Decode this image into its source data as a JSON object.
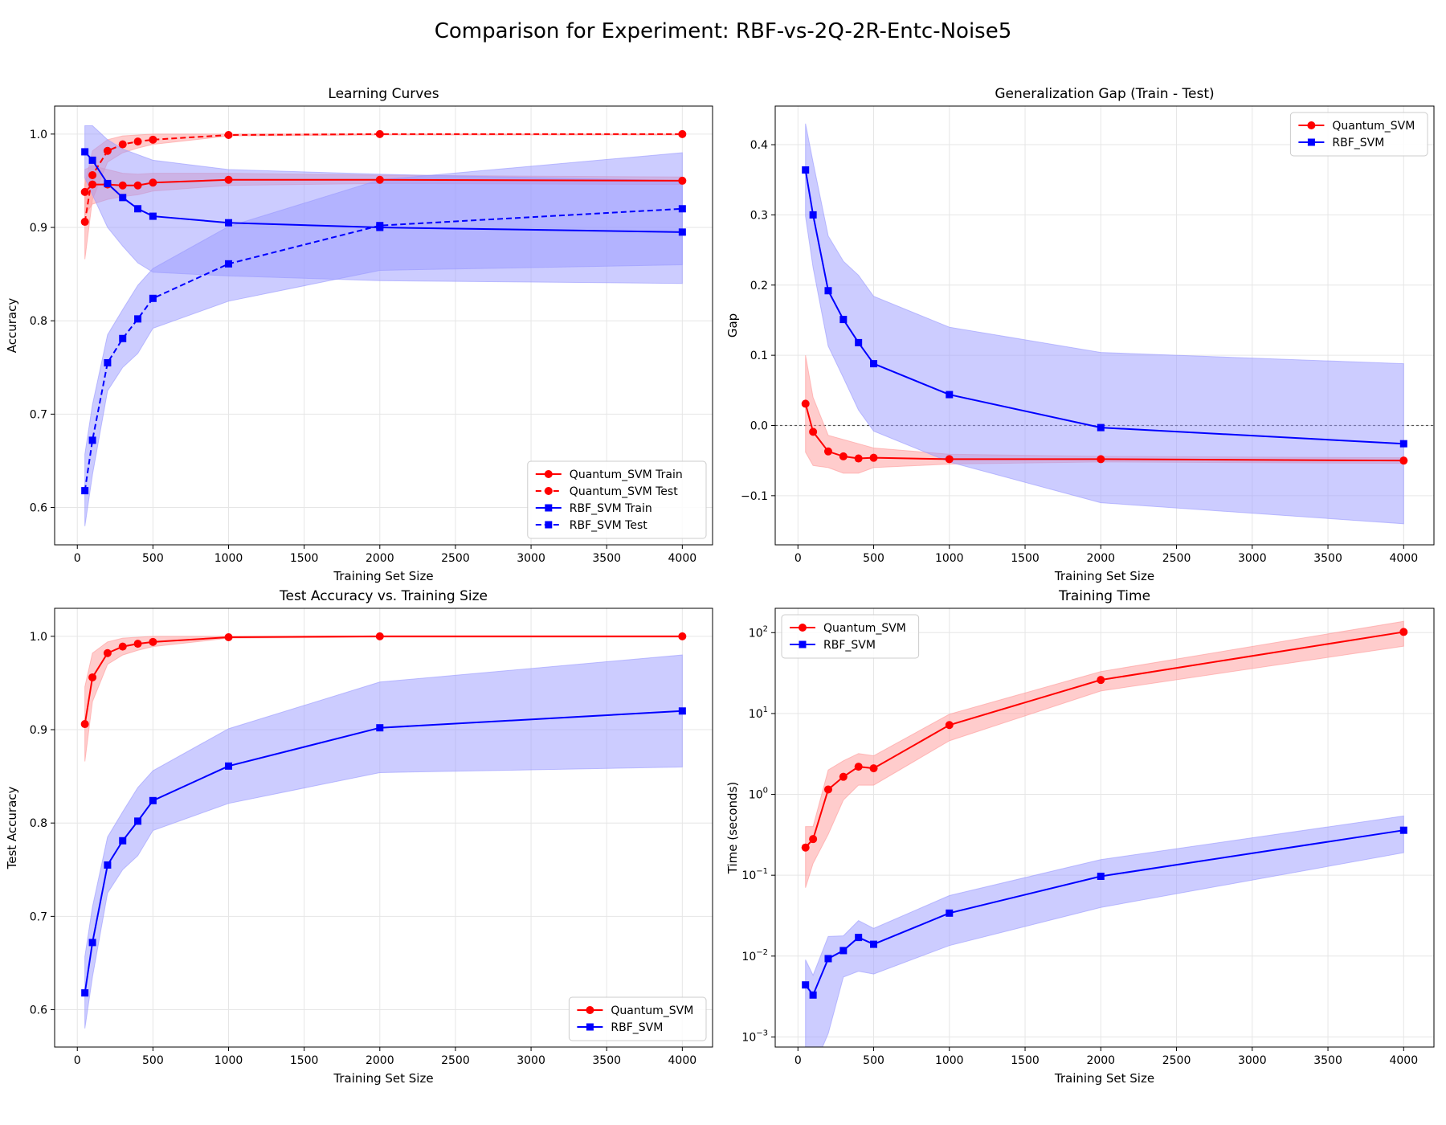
{
  "suptitle": "Comparison for Experiment: RBF-vs-2Q-2R-Entc-Noise5",
  "colors": {
    "quantum": "#ff0000",
    "rbf": "#0000ff",
    "quantum_band": "#ff9999",
    "rbf_band": "#9999ff",
    "grid": "#e6e6e6"
  },
  "chart_data": [
    {
      "id": "learning-curves",
      "type": "line",
      "title": "Learning Curves",
      "xlabel": "Training Set Size",
      "ylabel": "Accuracy",
      "xlim": [
        -150,
        4200
      ],
      "ylim": [
        0.56,
        1.03
      ],
      "xticks": [
        0,
        500,
        1000,
        1500,
        2000,
        2500,
        3000,
        3500,
        4000
      ],
      "xtick_labels": [
        "0",
        "500",
        "1000",
        "1500",
        "2000",
        "2500",
        "3000",
        "3500",
        "4000"
      ],
      "yticks": [
        0.6,
        0.7,
        0.8,
        0.9,
        1.0
      ],
      "ytick_labels": [
        "0.6",
        "0.7",
        "0.8",
        "0.9",
        "1.0"
      ],
      "grid": true,
      "legend": "lower-right",
      "x": [
        50,
        100,
        200,
        300,
        400,
        500,
        1000,
        2000,
        4000
      ],
      "series": [
        {
          "name": "Quantum_SVM Train",
          "color": "quantum",
          "marker": "circle",
          "dash": false,
          "values": [
            0.938,
            0.946,
            0.946,
            0.945,
            0.945,
            0.948,
            0.951,
            0.951,
            0.95
          ],
          "lower": [
            0.913,
            0.925,
            0.93,
            0.933,
            0.935,
            0.939,
            0.945,
            0.947,
            0.946
          ],
          "upper": [
            0.962,
            0.966,
            0.962,
            0.958,
            0.957,
            0.958,
            0.958,
            0.956,
            0.954
          ]
        },
        {
          "name": "Quantum_SVM Test",
          "color": "quantum",
          "marker": "circle",
          "dash": true,
          "values": [
            0.906,
            0.956,
            0.982,
            0.989,
            0.992,
            0.994,
            0.999,
            1.0,
            1.0
          ],
          "lower": [
            0.866,
            0.93,
            0.97,
            0.98,
            0.985,
            0.989,
            0.998,
            0.999,
            0.999
          ],
          "upper": [
            0.946,
            0.982,
            0.994,
            0.998,
            0.999,
            1.0,
            1.0,
            1.0,
            1.0
          ]
        },
        {
          "name": "RBF_SVM Train",
          "color": "rbf",
          "marker": "square",
          "dash": false,
          "values": [
            0.981,
            0.972,
            0.947,
            0.932,
            0.92,
            0.912,
            0.905,
            0.9,
            0.895
          ],
          "lower": [
            0.953,
            0.935,
            0.9,
            0.88,
            0.862,
            0.852,
            0.848,
            0.843,
            0.84
          ],
          "upper": [
            1.009,
            1.009,
            0.994,
            0.984,
            0.978,
            0.972,
            0.962,
            0.957,
            0.95
          ]
        },
        {
          "name": "RBF_SVM Test",
          "color": "rbf",
          "marker": "square",
          "dash": true,
          "values": [
            0.618,
            0.672,
            0.755,
            0.781,
            0.802,
            0.824,
            0.861,
            0.902,
            0.92
          ],
          "lower": [
            0.58,
            0.635,
            0.725,
            0.75,
            0.765,
            0.792,
            0.821,
            0.854,
            0.86
          ],
          "upper": [
            0.657,
            0.71,
            0.785,
            0.812,
            0.838,
            0.856,
            0.901,
            0.951,
            0.98
          ]
        }
      ]
    },
    {
      "id": "generalization-gap",
      "type": "line",
      "title": "Generalization Gap (Train - Test)",
      "xlabel": "Training Set Size",
      "ylabel": "Gap",
      "xlim": [
        -150,
        4200
      ],
      "ylim": [
        -0.17,
        0.455
      ],
      "xticks": [
        0,
        500,
        1000,
        1500,
        2000,
        2500,
        3000,
        3500,
        4000
      ],
      "xtick_labels": [
        "0",
        "500",
        "1000",
        "1500",
        "2000",
        "2500",
        "3000",
        "3500",
        "4000"
      ],
      "yticks": [
        -0.1,
        0.0,
        0.1,
        0.2,
        0.3,
        0.4
      ],
      "ytick_labels": [
        "−0.1",
        "0.0",
        "0.1",
        "0.2",
        "0.3",
        "0.4"
      ],
      "grid": true,
      "zero_line": true,
      "legend": "top-right",
      "x": [
        50,
        100,
        200,
        300,
        400,
        500,
        1000,
        2000,
        4000
      ],
      "series": [
        {
          "name": "Quantum_SVM",
          "color": "quantum",
          "marker": "circle",
          "dash": false,
          "values": [
            0.031,
            -0.009,
            -0.037,
            -0.044,
            -0.047,
            -0.046,
            -0.048,
            -0.048,
            -0.05
          ],
          "lower": [
            -0.038,
            -0.057,
            -0.06,
            -0.068,
            -0.068,
            -0.06,
            -0.055,
            -0.052,
            -0.054
          ],
          "upper": [
            0.1,
            0.04,
            -0.014,
            -0.02,
            -0.026,
            -0.032,
            -0.041,
            -0.044,
            -0.046
          ]
        },
        {
          "name": "RBF_SVM",
          "color": "rbf",
          "marker": "square",
          "dash": false,
          "values": [
            0.364,
            0.3,
            0.192,
            0.151,
            0.118,
            0.088,
            0.044,
            -0.003,
            -0.026
          ],
          "lower": [
            0.298,
            0.225,
            0.113,
            0.068,
            0.022,
            -0.008,
            -0.052,
            -0.11,
            -0.14
          ],
          "upper": [
            0.43,
            0.375,
            0.27,
            0.234,
            0.214,
            0.184,
            0.14,
            0.104,
            0.088
          ]
        }
      ]
    },
    {
      "id": "test-accuracy",
      "type": "line",
      "title": "Test Accuracy vs. Training Size",
      "xlabel": "Training Set Size",
      "ylabel": "Test Accuracy",
      "xlim": [
        -150,
        4200
      ],
      "ylim": [
        0.56,
        1.03
      ],
      "xticks": [
        0,
        500,
        1000,
        1500,
        2000,
        2500,
        3000,
        3500,
        4000
      ],
      "xtick_labels": [
        "0",
        "500",
        "1000",
        "1500",
        "2000",
        "2500",
        "3000",
        "3500",
        "4000"
      ],
      "yticks": [
        0.6,
        0.7,
        0.8,
        0.9,
        1.0
      ],
      "ytick_labels": [
        "0.6",
        "0.7",
        "0.8",
        "0.9",
        "1.0"
      ],
      "grid": true,
      "legend": "lower-right",
      "x": [
        50,
        100,
        200,
        300,
        400,
        500,
        1000,
        2000,
        4000
      ],
      "series": [
        {
          "name": "Quantum_SVM",
          "color": "quantum",
          "marker": "circle",
          "dash": false,
          "values": [
            0.906,
            0.956,
            0.982,
            0.989,
            0.992,
            0.994,
            0.999,
            1.0,
            1.0
          ],
          "lower": [
            0.866,
            0.93,
            0.97,
            0.98,
            0.985,
            0.989,
            0.998,
            0.999,
            0.999
          ],
          "upper": [
            0.946,
            0.982,
            0.994,
            0.998,
            0.999,
            1.0,
            1.0,
            1.0,
            1.0
          ]
        },
        {
          "name": "RBF_SVM",
          "color": "rbf",
          "marker": "square",
          "dash": false,
          "values": [
            0.618,
            0.672,
            0.755,
            0.781,
            0.802,
            0.824,
            0.861,
            0.902,
            0.92
          ],
          "lower": [
            0.58,
            0.635,
            0.725,
            0.75,
            0.765,
            0.792,
            0.821,
            0.854,
            0.86
          ],
          "upper": [
            0.657,
            0.71,
            0.785,
            0.812,
            0.838,
            0.856,
            0.901,
            0.951,
            0.98
          ]
        }
      ]
    },
    {
      "id": "training-time",
      "type": "line",
      "title": "Training Time",
      "xlabel": "Training Set Size",
      "ylabel": "Time (seconds)",
      "yscale": "log",
      "xlim": [
        -150,
        4200
      ],
      "ylim": [
        0.00075,
        200
      ],
      "xticks": [
        0,
        500,
        1000,
        1500,
        2000,
        2500,
        3000,
        3500,
        4000
      ],
      "xtick_labels": [
        "0",
        "500",
        "1000",
        "1500",
        "2000",
        "2500",
        "3000",
        "3500",
        "4000"
      ],
      "yticks": [
        0.001,
        0.01,
        0.1,
        1,
        10,
        100
      ],
      "ytick_bases": [
        "10",
        "10",
        "10",
        "10",
        "10",
        "10"
      ],
      "ytick_exps": [
        "−3",
        "−2",
        "−1",
        "0",
        "1",
        "2"
      ],
      "grid": true,
      "legend": "top-left",
      "x": [
        50,
        100,
        200,
        300,
        400,
        500,
        1000,
        2000,
        4000
      ],
      "series": [
        {
          "name": "Quantum_SVM",
          "color": "quantum",
          "marker": "circle",
          "dash": false,
          "values": [
            0.22,
            0.28,
            1.15,
            1.65,
            2.2,
            2.1,
            7.2,
            26,
            102
          ],
          "lower": [
            0.07,
            0.14,
            0.32,
            0.85,
            1.3,
            1.3,
            4.6,
            19,
            68
          ],
          "upper": [
            0.4,
            0.4,
            2.0,
            2.6,
            3.2,
            3.0,
            9.8,
            33,
            138
          ]
        },
        {
          "name": "RBF_SVM",
          "color": "rbf",
          "marker": "square",
          "dash": false,
          "values": [
            0.0044,
            0.0033,
            0.0093,
            0.0117,
            0.017,
            0.014,
            0.034,
            0.097,
            0.36
          ],
          "lower": [
            0.0004,
            0.0004,
            0.0011,
            0.0055,
            0.0065,
            0.006,
            0.0135,
            0.04,
            0.19
          ],
          "upper": [
            0.009,
            0.0058,
            0.0175,
            0.0178,
            0.0275,
            0.022,
            0.056,
            0.156,
            0.54
          ]
        }
      ]
    }
  ]
}
